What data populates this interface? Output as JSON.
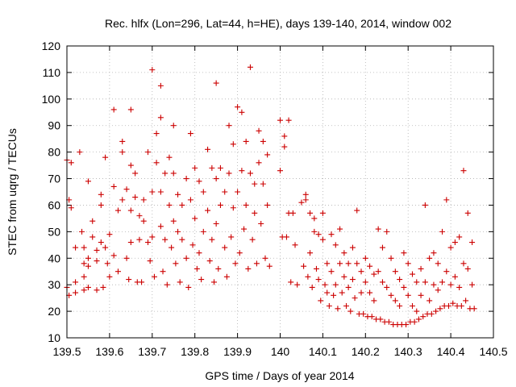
{
  "chart_data": {
    "type": "scatter",
    "title": "Rec. hlfx (Lon=296, Lat=44, h=HE), days 139-140, 2014, window 002",
    "xlabel": "GPS time / Days of year 2014",
    "ylabel": "STEC from uqrg / TECUs",
    "xlim": [
      139.5,
      140.5
    ],
    "ylim": [
      10,
      120
    ],
    "xticks": [
      139.5,
      139.6,
      139.7,
      139.8,
      139.9,
      140,
      140.1,
      140.2,
      140.3,
      140.4,
      140.5
    ],
    "xtick_labels": [
      "139.5",
      "139.6",
      "139.7",
      "139.8",
      "139.9",
      "140",
      "140.1",
      "140.2",
      "140.3",
      "140.4",
      "140.5"
    ],
    "yticks": [
      10,
      20,
      30,
      40,
      50,
      60,
      70,
      80,
      90,
      100,
      110,
      120
    ],
    "ytick_labels": [
      "10",
      "20",
      "30",
      "40",
      "50",
      "60",
      "70",
      "80",
      "90",
      "100",
      "110",
      "120"
    ],
    "grid": true,
    "marker": "plus",
    "color": "#cc0000",
    "points": [
      [
        139.5,
        77
      ],
      [
        139.505,
        62
      ],
      [
        139.51,
        76
      ],
      [
        139.51,
        59
      ],
      [
        139.52,
        44
      ],
      [
        139.52,
        31
      ],
      [
        139.52,
        27
      ],
      [
        139.5,
        29
      ],
      [
        139.505,
        26
      ],
      [
        139.53,
        80
      ],
      [
        139.535,
        50
      ],
      [
        139.54,
        44
      ],
      [
        139.54,
        38
      ],
      [
        139.54,
        33
      ],
      [
        139.54,
        28
      ],
      [
        139.55,
        69
      ],
      [
        139.55,
        40
      ],
      [
        139.55,
        37
      ],
      [
        139.55,
        29
      ],
      [
        139.56,
        54
      ],
      [
        139.56,
        48
      ],
      [
        139.57,
        43
      ],
      [
        139.57,
        39
      ],
      [
        139.57,
        28
      ],
      [
        139.58,
        64
      ],
      [
        139.58,
        60
      ],
      [
        139.58,
        46
      ],
      [
        139.585,
        29
      ],
      [
        139.59,
        78
      ],
      [
        139.59,
        44
      ],
      [
        139.595,
        38
      ],
      [
        139.6,
        49
      ],
      [
        139.6,
        33
      ],
      [
        139.61,
        96
      ],
      [
        139.61,
        67
      ],
      [
        139.61,
        41
      ],
      [
        139.62,
        58
      ],
      [
        139.62,
        35
      ],
      [
        139.63,
        84
      ],
      [
        139.63,
        80
      ],
      [
        139.63,
        62
      ],
      [
        139.64,
        66
      ],
      [
        139.64,
        40
      ],
      [
        139.645,
        32
      ],
      [
        139.65,
        96
      ],
      [
        139.65,
        75
      ],
      [
        139.65,
        58
      ],
      [
        139.65,
        46
      ],
      [
        139.66,
        72
      ],
      [
        139.66,
        63
      ],
      [
        139.665,
        31
      ],
      [
        139.67,
        56
      ],
      [
        139.67,
        47
      ],
      [
        139.675,
        31
      ],
      [
        139.68,
        62
      ],
      [
        139.68,
        54
      ],
      [
        139.69,
        80
      ],
      [
        139.69,
        46
      ],
      [
        139.695,
        39
      ],
      [
        139.7,
        111
      ],
      [
        139.7,
        65
      ],
      [
        139.7,
        48
      ],
      [
        139.705,
        33
      ],
      [
        139.71,
        87
      ],
      [
        139.71,
        76
      ],
      [
        139.72,
        105
      ],
      [
        139.72,
        93
      ],
      [
        139.72,
        65
      ],
      [
        139.72,
        52
      ],
      [
        139.725,
        35
      ],
      [
        139.73,
        72
      ],
      [
        139.73,
        47
      ],
      [
        139.735,
        30
      ],
      [
        139.74,
        78
      ],
      [
        139.74,
        60
      ],
      [
        139.745,
        44
      ],
      [
        139.75,
        90
      ],
      [
        139.75,
        72
      ],
      [
        139.75,
        54
      ],
      [
        139.755,
        38
      ],
      [
        139.76,
        64
      ],
      [
        139.76,
        50
      ],
      [
        139.765,
        31
      ],
      [
        139.77,
        60
      ],
      [
        139.77,
        47
      ],
      [
        139.78,
        70
      ],
      [
        139.78,
        40
      ],
      [
        139.785,
        29
      ],
      [
        139.79,
        87
      ],
      [
        139.79,
        62
      ],
      [
        139.795,
        45
      ],
      [
        139.8,
        74
      ],
      [
        139.8,
        55
      ],
      [
        139.805,
        36
      ],
      [
        139.81,
        69
      ],
      [
        139.81,
        42
      ],
      [
        139.815,
        32
      ],
      [
        139.82,
        65
      ],
      [
        139.82,
        50
      ],
      [
        139.83,
        81
      ],
      [
        139.83,
        58
      ],
      [
        139.835,
        39
      ],
      [
        139.84,
        74
      ],
      [
        139.84,
        47
      ],
      [
        139.845,
        31
      ],
      [
        139.85,
        106
      ],
      [
        139.85,
        70
      ],
      [
        139.85,
        53
      ],
      [
        139.855,
        36
      ],
      [
        139.86,
        74
      ],
      [
        139.86,
        60
      ],
      [
        139.87,
        65
      ],
      [
        139.87,
        44
      ],
      [
        139.875,
        33
      ],
      [
        139.88,
        90
      ],
      [
        139.88,
        72
      ],
      [
        139.885,
        48
      ],
      [
        139.89,
        83
      ],
      [
        139.89,
        59
      ],
      [
        139.895,
        38
      ],
      [
        139.9,
        97
      ],
      [
        139.9,
        65
      ],
      [
        139.905,
        42
      ],
      [
        139.91,
        95
      ],
      [
        139.91,
        73
      ],
      [
        139.915,
        51
      ],
      [
        139.92,
        84
      ],
      [
        139.92,
        60
      ],
      [
        139.925,
        36
      ],
      [
        139.93,
        112
      ],
      [
        139.93,
        72
      ],
      [
        139.935,
        47
      ],
      [
        139.94,
        68
      ],
      [
        139.94,
        57
      ],
      [
        139.945,
        38
      ],
      [
        139.95,
        88
      ],
      [
        139.95,
        76
      ],
      [
        139.955,
        53
      ],
      [
        139.96,
        84
      ],
      [
        139.96,
        68
      ],
      [
        139.965,
        40
      ],
      [
        139.97,
        79
      ],
      [
        139.97,
        60
      ],
      [
        139.975,
        37
      ],
      [
        140.0,
        92
      ],
      [
        140.0,
        73
      ],
      [
        140.005,
        48
      ],
      [
        140.01,
        86
      ],
      [
        140.01,
        82
      ],
      [
        140.015,
        48
      ],
      [
        140.02,
        92
      ],
      [
        140.02,
        57
      ],
      [
        140.025,
        31
      ],
      [
        140.03,
        57
      ],
      [
        140.035,
        45
      ],
      [
        140.04,
        30
      ],
      [
        140.05,
        61
      ],
      [
        140.055,
        37
      ],
      [
        140.06,
        64
      ],
      [
        140.06,
        62
      ],
      [
        140.065,
        33
      ],
      [
        140.07,
        57
      ],
      [
        140.07,
        42
      ],
      [
        140.075,
        29
      ],
      [
        140.08,
        55
      ],
      [
        140.08,
        50
      ],
      [
        140.085,
        36
      ],
      [
        140.09,
        49
      ],
      [
        140.09,
        32
      ],
      [
        140.095,
        24
      ],
      [
        140.1,
        57
      ],
      [
        140.1,
        47
      ],
      [
        140.105,
        30
      ],
      [
        140.11,
        38
      ],
      [
        140.11,
        27
      ],
      [
        140.115,
        22
      ],
      [
        140.12,
        49
      ],
      [
        140.12,
        35
      ],
      [
        140.125,
        26
      ],
      [
        140.13,
        45
      ],
      [
        140.13,
        30
      ],
      [
        140.135,
        21
      ],
      [
        140.14,
        51
      ],
      [
        140.14,
        38
      ],
      [
        140.145,
        27
      ],
      [
        140.15,
        42
      ],
      [
        140.15,
        33
      ],
      [
        140.155,
        22
      ],
      [
        140.16,
        38
      ],
      [
        140.16,
        29
      ],
      [
        140.165,
        20
      ],
      [
        140.17,
        44
      ],
      [
        140.17,
        32
      ],
      [
        140.175,
        25
      ],
      [
        140.18,
        58
      ],
      [
        140.18,
        38
      ],
      [
        140.185,
        19
      ],
      [
        140.19,
        35
      ],
      [
        140.19,
        27
      ],
      [
        140.195,
        19
      ],
      [
        140.2,
        40
      ],
      [
        140.2,
        31
      ],
      [
        140.205,
        18
      ],
      [
        140.21,
        37
      ],
      [
        140.21,
        27
      ],
      [
        140.215,
        18
      ],
      [
        140.22,
        34
      ],
      [
        140.22,
        24
      ],
      [
        140.225,
        17
      ],
      [
        140.23,
        51
      ],
      [
        140.23,
        35
      ],
      [
        140.235,
        17
      ],
      [
        140.24,
        44
      ],
      [
        140.24,
        31
      ],
      [
        140.245,
        16
      ],
      [
        140.25,
        50
      ],
      [
        140.25,
        29
      ],
      [
        140.255,
        16
      ],
      [
        140.26,
        40
      ],
      [
        140.26,
        26
      ],
      [
        140.265,
        15
      ],
      [
        140.27,
        35
      ],
      [
        140.27,
        24
      ],
      [
        140.275,
        15
      ],
      [
        140.28,
        32
      ],
      [
        140.28,
        22
      ],
      [
        140.285,
        15
      ],
      [
        140.29,
        42
      ],
      [
        140.29,
        29
      ],
      [
        140.295,
        15
      ],
      [
        140.3,
        38
      ],
      [
        140.3,
        26
      ],
      [
        140.305,
        16
      ],
      [
        140.31,
        34
      ],
      [
        140.31,
        22
      ],
      [
        140.315,
        16
      ],
      [
        140.32,
        31
      ],
      [
        140.32,
        20
      ],
      [
        140.325,
        17
      ],
      [
        140.33,
        36
      ],
      [
        140.33,
        26
      ],
      [
        140.335,
        18
      ],
      [
        140.34,
        60
      ],
      [
        140.34,
        31
      ],
      [
        140.345,
        19
      ],
      [
        140.35,
        40
      ],
      [
        140.35,
        24
      ],
      [
        140.355,
        19
      ],
      [
        140.36,
        42
      ],
      [
        140.36,
        30
      ],
      [
        140.365,
        20
      ],
      [
        140.37,
        38
      ],
      [
        140.37,
        28
      ],
      [
        140.375,
        21
      ],
      [
        140.38,
        50
      ],
      [
        140.38,
        31
      ],
      [
        140.385,
        22
      ],
      [
        140.39,
        62
      ],
      [
        140.39,
        35
      ],
      [
        140.395,
        22
      ],
      [
        140.4,
        44
      ],
      [
        140.4,
        30
      ],
      [
        140.405,
        23
      ],
      [
        140.41,
        46
      ],
      [
        140.41,
        33
      ],
      [
        140.415,
        22
      ],
      [
        140.42,
        48
      ],
      [
        140.42,
        29
      ],
      [
        140.425,
        22
      ],
      [
        140.43,
        73
      ],
      [
        140.43,
        38
      ],
      [
        140.435,
        24
      ],
      [
        140.44,
        57
      ],
      [
        140.44,
        36
      ],
      [
        140.445,
        21
      ],
      [
        140.45,
        46
      ],
      [
        140.45,
        30
      ],
      [
        140.455,
        21
      ]
    ]
  }
}
